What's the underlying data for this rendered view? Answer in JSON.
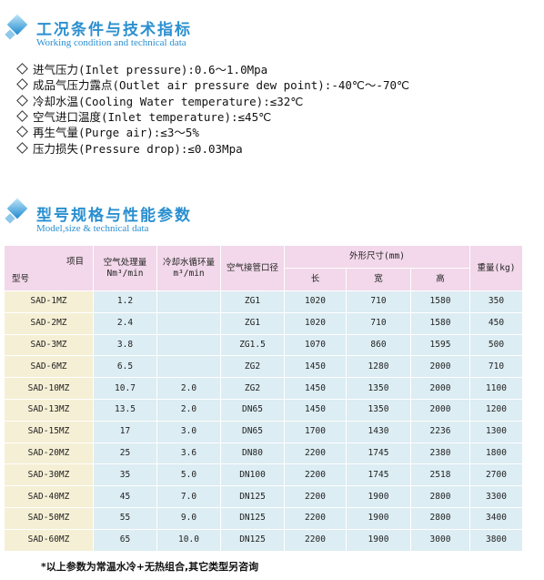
{
  "section1": {
    "title": "工况条件与技术指标",
    "subtitle": "Working condition and technical data",
    "items": [
      "进气压力(Inlet pressure):0.6～1.0Mpa",
      "成品气压力露点(Outlet air pressure dew point):-40℃～-70℃",
      "冷却水温(Cooling Water temperature):≤32℃",
      "空气进口温度(Inlet temperature):≤45℃",
      "再生气量(Purge air):≤3～5%",
      "压力损失(Pressure drop):≤0.03Mpa"
    ]
  },
  "section2": {
    "title": "型号规格与性能参数",
    "subtitle": "Model,size & technical data"
  },
  "table": {
    "header": {
      "item": "项目",
      "model": "型号",
      "flow": [
        "空气处理量",
        "Nm³/min"
      ],
      "water": [
        "冷却水循环量",
        "m³/min"
      ],
      "pipe": "空气接管口径",
      "size": "外形尺寸(mm)",
      "length": "长",
      "width": "宽",
      "height": "高",
      "weight": "重量(kg)"
    },
    "rows": [
      [
        "SAD-1MZ",
        "1.2",
        null,
        "ZG1",
        "1020",
        "710",
        "1580",
        "350"
      ],
      [
        "SAD-2MZ",
        "2.4",
        null,
        "ZG1",
        "1020",
        "710",
        "1580",
        "450"
      ],
      [
        "SAD-3MZ",
        "3.8",
        null,
        "ZG1.5",
        "1070",
        "860",
        "1595",
        "500"
      ],
      [
        "SAD-6MZ",
        "6.5",
        null,
        "ZG2",
        "1450",
        "1280",
        "2000",
        "710"
      ],
      [
        "SAD-10MZ",
        "10.7",
        "2.0",
        "ZG2",
        "1450",
        "1350",
        "2000",
        "1100"
      ],
      [
        "SAD-13MZ",
        "13.5",
        "2.0",
        "DN65",
        "1450",
        "1350",
        "2000",
        "1200"
      ],
      [
        "SAD-15MZ",
        "17",
        "3.0",
        "DN65",
        "1700",
        "1430",
        "2236",
        "1300"
      ],
      [
        "SAD-20MZ",
        "25",
        "3.6",
        "DN80",
        "2200",
        "1745",
        "2380",
        "1800"
      ],
      [
        "SAD-30MZ",
        "35",
        "5.0",
        "DN100",
        "2200",
        "1745",
        "2518",
        "2700"
      ],
      [
        "SAD-40MZ",
        "45",
        "7.0",
        "DN125",
        "2200",
        "1900",
        "2800",
        "3300"
      ],
      [
        "SAD-50MZ",
        "55",
        "9.0",
        "DN125",
        "2200",
        "1900",
        "2800",
        "3400"
      ],
      [
        "SAD-60MZ",
        "65",
        "10.0",
        "DN125",
        "2200",
        "1900",
        "3000",
        "3800"
      ]
    ]
  },
  "footnote": "*以上参数为常温水冷+无热组合,其它类型另咨询"
}
